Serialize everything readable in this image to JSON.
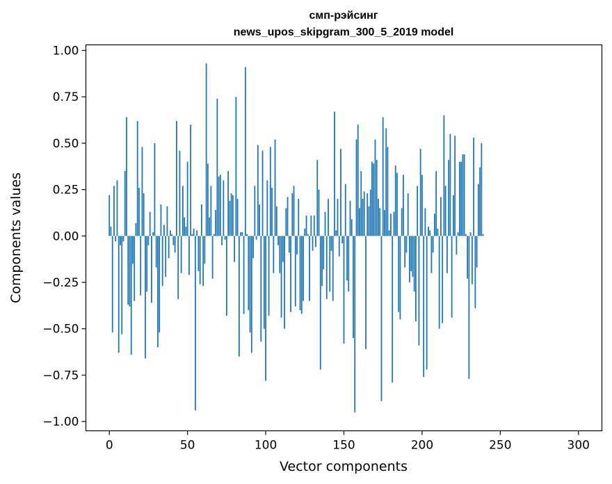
{
  "chart_data": {
    "type": "bar",
    "title": [
      "смп-рэйсинг",
      "news_upos_skipgram_300_5_2019 model"
    ],
    "xlabel": "Vector components",
    "ylabel": "Components values",
    "xlim": [
      -15,
      315
    ],
    "ylim": [
      -1.05,
      1.03
    ],
    "xticks": [
      0,
      50,
      100,
      150,
      200,
      250,
      300
    ],
    "yticks": [
      1.0,
      0.75,
      0.5,
      0.25,
      0.0,
      -0.25,
      -0.5,
      -0.75,
      -1.0
    ],
    "ytick_labels": [
      "1.00",
      "0.75",
      "0.50",
      "0.25",
      "0.00",
      "−0.25",
      "−0.50",
      "−0.75",
      "−1.00"
    ],
    "bar_color": "#1f77b4",
    "grid": false,
    "values": [
      0.22,
      0.05,
      -0.52,
      0.27,
      -0.03,
      0.3,
      -0.63,
      -0.05,
      -0.53,
      -0.03,
      0.35,
      0.64,
      -0.37,
      -0.38,
      -0.64,
      -0.15,
      -0.35,
      0.07,
      0.62,
      0.26,
      -0.32,
      0.48,
      0.23,
      -0.66,
      -0.3,
      -0.05,
      0.13,
      -0.36,
      0.02,
      0.5,
      -0.17,
      -0.6,
      -0.52,
      0.17,
      -0.27,
      0.06,
      -0.22,
      0.16,
      -0.12,
      0.03,
      0.01,
      -0.05,
      -0.09,
      0.62,
      -0.34,
      0.46,
      -0.2,
      0.27,
      0.1,
      0.05,
      0.4,
      -0.21,
      0.6,
      0.01,
      0.04,
      -0.94,
      0.03,
      -0.19,
      -0.26,
      0.17,
      -0.27,
      -0.15,
      0.93,
      0.39,
      0.1,
      0.27,
      -0.23,
      0.01,
      0.14,
      0.74,
      0.32,
      0.33,
      -0.05,
      0.3,
      -0.02,
      -0.43,
      0.35,
      0.19,
      0.23,
      0.22,
      -0.14,
      0.75,
      0.2,
      -0.65,
      0.02,
      0.02,
      -0.42,
      0.91,
      0.01,
      -0.4,
      -0.52,
      -0.63,
      -0.12,
      0.27,
      -0.02,
      0.49,
      0.17,
      -0.57,
      0.46,
      -0.5,
      -0.78,
      0.3,
      -0.43,
      0.48,
      0.26,
      -0.2,
      0.52,
      0.16,
      -0.05,
      -0.2,
      -0.44,
      -0.14,
      -0.5,
      0.15,
      0.21,
      -0.09,
      -0.41,
      0.23,
      0.27,
      -0.38,
      -0.1,
      0.2,
      -0.4,
      -0.42,
      -0.35,
      0.04,
      0.11,
      0.01,
      -0.35,
      0.11,
      -0.08,
      0.11,
      -0.06,
      0.41,
      0.25,
      -0.72,
      -0.27,
      -0.18,
      0.13,
      -0.34,
      0.2,
      -0.3,
      -0.08,
      -0.35,
      0.67,
      0.03,
      0.2,
      -0.11,
      0.47,
      -0.04,
      -0.58,
      0.28,
      -0.24,
      -0.3,
      0.19,
      0.09,
      -0.55,
      -0.95,
      0.52,
      0.6,
      0.15,
      0.35,
      0.2,
      0.24,
      -0.61,
      0.23,
      0.16,
      0.25,
      0.4,
      0.39,
      0.52,
      0.41,
      0.2,
      0.15,
      -0.89,
      0.64,
      0.14,
      0.58,
      0.48,
      0.03,
      0.12,
      -0.79,
      0.13,
      0.38,
      0.34,
      -0.41,
      -0.45,
      0.15,
      0.33,
      -0.17,
      -0.09,
      0.23,
      -0.25,
      -0.19,
      -0.22,
      -0.3,
      -0.46,
      0.27,
      -0.59,
      0.47,
      0.33,
      -0.76,
      0.15,
      -0.72,
      0.05,
      0.03,
      -0.2,
      -0.09,
      0.12,
      0.35,
      0.04,
      -0.5,
      0.21,
      -0.47,
      0.65,
      0.27,
      -0.2,
      0.41,
      0.55,
      -0.44,
      0.22,
      0.54,
      -0.1,
      0.02,
      0.4,
      0.4,
      0.44,
      0.44,
      0.01,
      -0.23,
      -0.77,
      0.02,
      -0.26,
      0.53,
      -0.39,
      -0.17,
      0.28,
      0.37,
      0.5,
      0.01
    ]
  }
}
